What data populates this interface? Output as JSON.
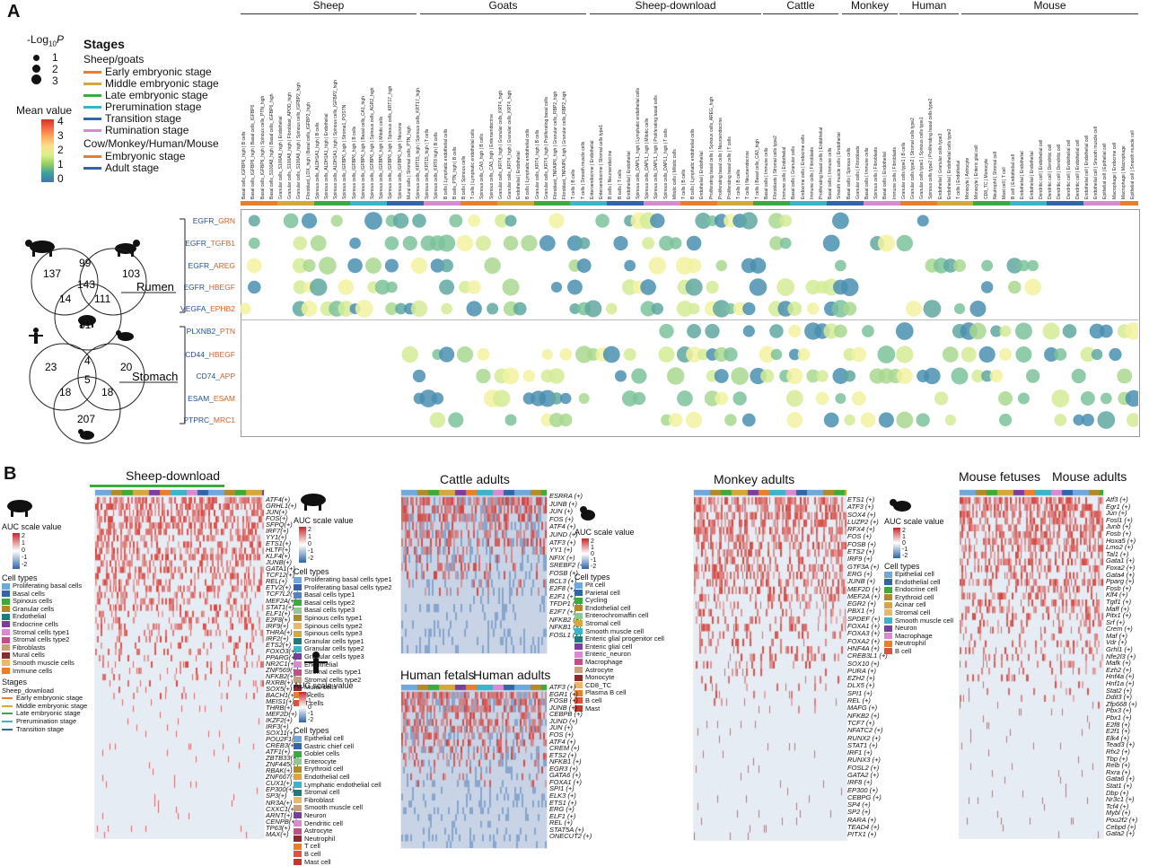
{
  "panelA": {
    "letter": "A",
    "species_headers": [
      "Sheep",
      "Goats",
      "Sheep-download",
      "Cattle",
      "Monkey",
      "Human",
      "Mouse"
    ],
    "pval_legend": {
      "title_prefix": "-Log",
      "title_sub": "10",
      "title_suffix": "P",
      "levels": [
        "1",
        "2",
        "3"
      ]
    },
    "mean_legend": {
      "title": "Mean value",
      "ticks": [
        "4",
        "3",
        "2",
        "1",
        "0"
      ]
    },
    "stages": {
      "title": "Stages",
      "group1": "Sheep/goats",
      "items1": [
        {
          "label": "Early embryonic stage",
          "color": "#e97f2a"
        },
        {
          "label": "Middle embryonic stage",
          "color": "#d6a73a"
        },
        {
          "label": "Late embryonic stage",
          "color": "#3cab3c"
        },
        {
          "label": "Prerumination stage",
          "color": "#39b4c8"
        },
        {
          "label": "Transition stage",
          "color": "#2e66a8"
        },
        {
          "label": "Rumination stage",
          "color": "#d98ad1"
        }
      ],
      "group2": "Cow/Monkey/Human/Mouse",
      "items2": [
        {
          "label": "Embryonic stage",
          "color": "#e97f2a"
        },
        {
          "label": "Adult stage",
          "color": "#2e66a8"
        }
      ]
    },
    "venn_rumen": {
      "label": "Rumen",
      "values": [
        "137",
        "99",
        "103",
        "143",
        "14",
        "111",
        "81"
      ]
    },
    "venn_stomach": {
      "label": "Stomach",
      "values": [
        "23",
        "4",
        "20",
        "5",
        "18",
        "18",
        "207"
      ]
    },
    "rumen_rows": [
      {
        "r": "EGFR",
        "l": "GRN"
      },
      {
        "r": "EGFR",
        "l": "TGFB1"
      },
      {
        "r": "EGFR",
        "l": "AREG"
      },
      {
        "r": "EGFR",
        "l": "HBEGF"
      },
      {
        "r": "VEGFA",
        "l": "EPHB2"
      }
    ],
    "stomach_rows": [
      {
        "r": "PLXNB2",
        "l": "PTN"
      },
      {
        "r": "CD44",
        "l": "HBEGF"
      },
      {
        "r": "CD74",
        "l": "APP"
      },
      {
        "r": "ESAM",
        "l": "ESAM"
      },
      {
        "r": "PTPRC",
        "l": "MRC1"
      }
    ],
    "column_labels": [
      "Basal cells_IGFBP6_high | B cells",
      "Basal cells_IGFBP6_high | Basal cells_IGFBP6",
      "Basal cells_IGFBP6_high | Spinous cells_PTN_high",
      "Basal cells_S100A8_high | Basal cells_IGFBP6_high",
      "Granular cells_S100A8_high | Endothelial",
      "Granular cells_S100A8_high | Fibroblast_APOD_high",
      "Granular cells_S100A8_high | Spinous cells_IGFBP2_high",
      "Fibroblast_LOX_high | Basal cells_IGFBP2_high",
      "Spinous cells_ALDH1A1_high | B cells",
      "Spinous cells_ALDH1A1_high | Endothelial",
      "Spinous cells_ALDH1A1_high | Spinous cells_IGFBP2_high",
      "Spinous cells_IGFBP6_high | Stroma1_POSTN",
      "Spinous cells_IGFBP6_high | B cells",
      "Spinous cells_IGFBP6_high | Basal cells_CA1_high",
      "Spinous cells_IGFBP6_high | Spinous cells_AGR2_high",
      "Spinous cells_IGFBP6_high | Mitotic cells",
      "Spinous cells_IGFBP6_high | Spinous cells_KRT17_high",
      "Spinous cells_IGFBP6_high | Neurons",
      "Mural cells | Stromal cells_PTN_high",
      "Spinous cells_KRT15_high | Spinous cells_KRT17_high",
      "Spinous cells_KRT15_high | T cells",
      "Spinous cells_KRT8 high | B cells",
      "B cells | Lymphatic endothelial cells",
      "B cells_PTN_high | B cells",
      "B cells | Spinous cells",
      "T cells | Lymphatic endothelial cells",
      "Spinous cells_CA3_high | B cells",
      "Spinous cells_CA3_high | Enteroendocrine",
      "Granular cells_KRT4_high | Granular cells_KRT4_high",
      "Granular cells_KRT4_high | Granular cells_KRT4_high",
      "Endothelial | Endothelial",
      "B cells | Lymphatic endothelial cells",
      "Granular cells_KRT4_high | B cells",
      "Granular cells_KRT4_high | Proliferating basal cells",
      "Fibroblast_TNFAIP6_high | Granular cells_RBP2_high",
      "Fibroblast_TNFAIP6_high | Granular cells_RBP2_high",
      "T cells | B cells",
      "T cells | Smooth muscle cells",
      "Enteroendocrine | Endothelial",
      "Enteroendocrine | Stromal cells type1",
      "B cells | Neuroendocrine",
      "B cells | T cells",
      "Endothelial | Endothelial",
      "Spinous cells_DAPL1_high | Lymphatic endothelial cells",
      "Spinous cells_DAPL1_high | Mitotic cells",
      "Spinous cells_DAPL1_high | Proliferating basal cells",
      "Spinous cells_DAPL1_high | T cells",
      "Mitotic cells | Mitotic cells",
      "T cells | B cells",
      "B cells | Lymphatic endothelial cells",
      "Endothelial | Endothelial",
      "Proliferating basal cells | Spinous cells_AREG_high",
      "Proliferating basal cells | Neuroendocrine",
      "Proliferating basal cells | T cells",
      "T cells | B cells",
      "T cells | Neuroendocrine",
      "T cells | Basal cells_CA3_high",
      "Basal cells | Immune cells",
      "Fibroblasts | Stromal cells type2",
      "Immune cells | Endothelial",
      "Basal cells | Granular cells",
      "Endocrine cells | Endocrine cells",
      "Immune cells | Fibroblasts",
      "Proliferating basal cells | Endothelial",
      "Basal cells | Immune cells",
      "Smooth muscle cells | Endothelial",
      "Basal cells | Spinous cells",
      "Granular cells | Fibroblasts",
      "Basal cells | Immune cells",
      "Spinous cells | Fibroblasts",
      "Basal cells | Endothelial",
      "Immune cells | Fibroblasts",
      "Granular cells type1 | B cells",
      "Granular cells type2 | Stromal cells type2",
      "Granular cells type1 | Spinous cells type1",
      "Spinous cells type2 | Proliferating basal cells type2",
      "Endothelial | Granular cells type3",
      "Endothelial | Endothelial cells type2",
      "T cells | Endothelial",
      "Monocyte | Astrocyte",
      "Monocyte | Enteric glial cell",
      "CD8_TC | Monocyte",
      "Neutrophil | Stromal cell",
      "Mast cell | T cell",
      "B cell | Endothelial cell",
      "Endothelial | Endothelial",
      "Endothelial | Endothelial",
      "Dendritic cell | Endothelial cell",
      "Dendritic cell | Dendritic cell",
      "Dendritic cell | Dendritic cell",
      "Dendritic cell | Endothelial cell",
      "Dendritic cell | Endothelial cell",
      "Endothelial cell | Endothelial cell",
      "Endothelial cell | Smooth muscle cell",
      "Epithelial cell | Epithelial cell",
      "Macrophage | Endocrine cell",
      "Macrophage | Macrophage",
      "Epithelial cell | Smooth muscle cell"
    ]
  },
  "panelB": {
    "letter": "B",
    "heatmaps": [
      {
        "title": "Sheep-download",
        "tfs": [
          "ATF4(+)",
          "GRHL1(+)",
          "JUN(+)",
          "FOS(+)",
          "SFPQ(+)",
          "IRF7(+)",
          "YY1(+)",
          "ETS1(+)",
          "HLTF(+)",
          "KLF4(+)",
          "JUNB(+)",
          "GATA1(+)",
          "TCF12(+)",
          "REL(+)",
          "ETV2(+)",
          "TCF7L2(+)",
          "MEF2A(+)",
          "STAT1(+)",
          "ELF1(+)",
          "E2F8(+)",
          "IRF9(+)",
          "THRA(+)",
          "IRF2(+)",
          "ETS2(+)",
          "FOXO3(+)",
          "PPARG(+)",
          "NR2C1(+)",
          "ZNF569(+)",
          "NFKB2(+)",
          "RXRB(+)",
          "SOX5(+)",
          "BACH1(+)",
          "MEIS1(+)",
          "THRB(+)",
          "MEF2D(+)",
          "IKZF2(+)",
          "IRF3(+)",
          "SOX11(+)",
          "POU2F1(+)",
          "CREB3(+)",
          "ATF1(+)",
          "ZBTB33(+)",
          "ZNF445(+)",
          "RBAK(+)",
          "ZNF667(+)",
          "CUX1(+)",
          "EP300(+)",
          "SP3(+)",
          "NR3A(+)",
          "CXXC1(+)",
          "ARNT(+)",
          "CENPB(+)",
          "TP63(+)",
          "MAX(+)"
        ]
      },
      {
        "title": "Cattle adults",
        "tfs": [
          "ESRRA (+)",
          "JUNB (+)",
          "JUN (+)",
          "FOS (+)",
          "ATF4 (+)",
          "JUND (+)",
          "ATF3 (+)",
          "YY1 (+)",
          "NFIX (+)",
          "SREBF2 (+)",
          "FOSB (+)",
          "BCL3 (+)",
          "E2F8 (+)",
          "E2F1 (+)",
          "TFDP1 (+)",
          "E2F7 (+)",
          "NFKB2 (+)",
          "NFKB1 (+)",
          "FOSL1 (+)"
        ]
      },
      {
        "title": "Human fetals",
        "title2": "Human adults",
        "tfs": [
          "ATF3 (+)",
          "EGR1 (+)",
          "FOSB (+)",
          "JUNB (+)",
          "CEBPB (+)",
          "JUND (+)",
          "JUN (+)",
          "FOS (+)",
          "ATF4 (+)",
          "CREM (+)",
          "ETS2 (+)",
          "NFKB1 (+)",
          "EGR3 (+)",
          "GATA6 (+)",
          "FOXA1 (+)",
          "SPI1 (+)",
          "ELK3 (+)",
          "ETS1 (+)",
          "ERG (+)",
          "ELF1 (+)",
          "REL (+)",
          "STAT5A (+)",
          "ONECUT2 (+)"
        ]
      },
      {
        "title": "Monkey adults",
        "tfs": [
          "ETS1 (+)",
          "ATF3 (+)",
          "SOX4 (+)",
          "LUZP2 (+)",
          "RFX4 (+)",
          "FOS (+)",
          "FOSB (+)",
          "ETS2 (+)",
          "IRF9 (+)",
          "GTF3A (+)",
          "ERG (+)",
          "JUNB (+)",
          "MEF2D (+)",
          "MEF2A (+)",
          "EGR2 (+)",
          "PBX1 (+)",
          "SPDEF (+)",
          "FOXA1 (+)",
          "FOXA3 (+)",
          "FOXA2 (+)",
          "HNF4A (+)",
          "CREB3L1 (+)",
          "SOX10 (+)",
          "PURA (+)",
          "EZH2 (+)",
          "DLX5 (+)",
          "SPI1 (+)",
          "REL (+)",
          "MAFG (+)",
          "NFKB2 (+)",
          "TCF7 (+)",
          "NFATC2 (+)",
          "RUNX2 (+)",
          "STAT1 (+)",
          "IRF1 (+)",
          "RUNX3 (+)",
          "FOSL2 (+)",
          "GATA2 (+)",
          "IRF8 (+)",
          "EP300 (+)",
          "CEBPG (+)",
          "SP4 (+)",
          "SP2 (+)",
          "RARA (+)",
          "TEAD4 (+)",
          "PITX1 (+)"
        ]
      },
      {
        "title": "Mouse fetuses",
        "title2": "Mouse adults",
        "tfs": [
          "Atf3 (+)",
          "Egr1 (+)",
          "Jun (+)",
          "Fosl1 (+)",
          "Junb (+)",
          "Fosb (+)",
          "Hoxa5 (+)",
          "Lmo2 (+)",
          "Tal1 (+)",
          "Gata1 (+)",
          "Foxa2 (+)",
          "Gata4 (+)",
          "Pparg (+)",
          "Fosb (+)",
          "Klf4 (+)",
          "Tgif1 (+)",
          "Maff (+)",
          "Pitx1 (+)",
          "Srf (+)",
          "Crem (+)",
          "Maf (+)",
          "Vdr (+)",
          "Grhl1 (+)",
          "Nfe2l3 (+)",
          "Mafk (+)",
          "Ezh2 (+)",
          "Hnf4a (+)",
          "Hnf1a (+)",
          "Stat2 (+)",
          "Ddit3 (+)",
          "Zfp668 (+)",
          "Pbx3 (+)",
          "Pbx1 (+)",
          "E2f8 (+)",
          "E2f1 (+)",
          "Elk4 (+)",
          "Tead3 (+)",
          "Rfx2 (+)",
          "Tbp (+)",
          "Relb (+)",
          "Rxra (+)",
          "Gata6 (+)",
          "Stat1 (+)",
          "Dbp (+)",
          "Nr3c1 (+)",
          "Tcf4 (+)",
          "Mybl (+)",
          "Pou2f2 (+)",
          "Cebpd (+)",
          "Gata2 (+)"
        ]
      }
    ],
    "auc_label": "AUC scale value",
    "auc_ticks": [
      "2",
      "1",
      "0",
      "-1",
      "-2"
    ],
    "sheep_celltypes": {
      "title": "Cell types",
      "items": [
        {
          "label": "Proliferating basal cells",
          "color": "#6fa8dc"
        },
        {
          "label": "Basal cells",
          "color": "#2e66a8"
        },
        {
          "label": "Spinous cells",
          "color": "#3cab3c"
        },
        {
          "label": "Granular cells",
          "color": "#b28a2a"
        },
        {
          "label": "Endothelial",
          "color": "#1f7b7b"
        },
        {
          "label": "Endocrine cells",
          "color": "#7a3e9c"
        },
        {
          "label": "Stromal cells type1",
          "color": "#d98ad1"
        },
        {
          "label": "Stromal cells type2",
          "color": "#c24f8a"
        },
        {
          "label": "Fibroblasts",
          "color": "#c9a07a"
        },
        {
          "label": "Mural cells",
          "color": "#8a2a2a"
        },
        {
          "label": "Smooth muscle cells",
          "color": "#e9b86a"
        },
        {
          "label": "Immune cells",
          "color": "#e97f2a"
        }
      ]
    },
    "sheep_stages": {
      "title": "Stages",
      "sub": "Sheep_download",
      "items": [
        {
          "label": "Early embryonic stage",
          "color": "#e97f2a"
        },
        {
          "label": "Middle embryonic stage",
          "color": "#d6a73a"
        },
        {
          "label": "Late embryonic stage",
          "color": "#3cab3c"
        },
        {
          "label": "Prerumination stage",
          "color": "#39b4c8"
        },
        {
          "label": "Transition stage",
          "color": "#2e66a8"
        }
      ]
    },
    "cattle_celltypes": {
      "title": "Cell types",
      "items": [
        {
          "label": "Proliferating basal cells type1",
          "color": "#6fa8dc"
        },
        {
          "label": "Proliferating basal cells type2",
          "color": "#2e66a8"
        },
        {
          "label": "Basal cells type1",
          "color": "#4f86c6"
        },
        {
          "label": "Basal cells type2",
          "color": "#3cab3c"
        },
        {
          "label": "Basal cells type3",
          "color": "#8fc98f"
        },
        {
          "label": "Spinous cells type1",
          "color": "#b28a2a"
        },
        {
          "label": "Spinous cells type2",
          "color": "#e9b86a"
        },
        {
          "label": "Spinous cells type3",
          "color": "#d6a73a"
        },
        {
          "label": "Granular cells type1",
          "color": "#1f7b7b"
        },
        {
          "label": "Granular cells type2",
          "color": "#39b4c8"
        },
        {
          "label": "Granular cells type3",
          "color": "#7a3e9c"
        },
        {
          "label": "Endothelial",
          "color": "#d98ad1"
        },
        {
          "label": "Stromal cells type1",
          "color": "#c24f8a"
        },
        {
          "label": "Stromal cells type2",
          "color": "#c9a07a"
        },
        {
          "label": "Mural cells",
          "color": "#8a2a2a"
        },
        {
          "label": "B cells",
          "color": "#e97f2a"
        },
        {
          "label": "T cells",
          "color": "#e0503a"
        }
      ]
    },
    "stomach_celltypes": {
      "title": "Cell types",
      "items": [
        {
          "label": "Pit cell",
          "color": "#6fa8dc"
        },
        {
          "label": "Parietal cell",
          "color": "#2e66a8"
        },
        {
          "label": "Cycling",
          "color": "#3cab3c"
        },
        {
          "label": "Endothelial cell",
          "color": "#b28a2a"
        },
        {
          "label": "Enterochromaffin cell",
          "color": "#8fc98f"
        },
        {
          "label": "Stromal cell",
          "color": "#d6a73a"
        },
        {
          "label": "Smooth muscle cell",
          "color": "#39b4c8"
        },
        {
          "label": "Enteric glial progenitor cell",
          "color": "#1f7b7b"
        },
        {
          "label": "Enteric glial cell",
          "color": "#7a3e9c"
        },
        {
          "label": "Enteric_neuron",
          "color": "#d98ad1"
        },
        {
          "label": "Macrophage",
          "color": "#c24f8a"
        },
        {
          "label": "Astrocyte",
          "color": "#c9a07a"
        },
        {
          "label": "Monocyte",
          "color": "#8a2a2a"
        },
        {
          "label": "CD8_TC",
          "color": "#e9b86a"
        },
        {
          "label": "Plasma B cell",
          "color": "#e97f2a"
        },
        {
          "label": "B cell",
          "color": "#e0503a"
        },
        {
          "label": "Mast",
          "color": "#c0392b"
        }
      ]
    },
    "human_celltypes": {
      "title": "Cell types",
      "items": [
        {
          "label": "Epithelial cell",
          "color": "#6fa8dc"
        },
        {
          "label": "Gastric chief cell",
          "color": "#2e66a8"
        },
        {
          "label": "Goblet cells",
          "color": "#3cab3c"
        },
        {
          "label": "Enterocyte",
          "color": "#8fc98f"
        },
        {
          "label": "Erythroid cell",
          "color": "#b28a2a"
        },
        {
          "label": "Endothelial cell",
          "color": "#d6a73a"
        },
        {
          "label": "Lymphatic endothelial cell",
          "color": "#39b4c8"
        },
        {
          "label": "Stromal cell",
          "color": "#1f7b7b"
        },
        {
          "label": "Fibroblast",
          "color": "#e9b86a"
        },
        {
          "label": "Smooth muscle cell",
          "color": "#c9a07a"
        },
        {
          "label": "Neuron",
          "color": "#7a3e9c"
        },
        {
          "label": "Dendritic cell",
          "color": "#d98ad1"
        },
        {
          "label": "Astrocyte",
          "color": "#c24f8a"
        },
        {
          "label": "Neutrophil",
          "color": "#8a2a2a"
        },
        {
          "label": "T cell",
          "color": "#e97f2a"
        },
        {
          "label": "B cell",
          "color": "#e0503a"
        },
        {
          "label": "Mast cell",
          "color": "#c0392b"
        }
      ]
    },
    "mouse_celltypes": {
      "title": "Cell types",
      "items": [
        {
          "label": "Epithelial cell",
          "color": "#6fa8dc"
        },
        {
          "label": "Endothelial cell",
          "color": "#2e66a8"
        },
        {
          "label": "Endocrine cell",
          "color": "#3cab3c"
        },
        {
          "label": "Erythroid cell",
          "color": "#b28a2a"
        },
        {
          "label": "Acinar cell",
          "color": "#d6a73a"
        },
        {
          "label": "Stromal cell",
          "color": "#e9b86a"
        },
        {
          "label": "Smooth muscle cell",
          "color": "#39b4c8"
        },
        {
          "label": "Neuron",
          "color": "#7a3e9c"
        },
        {
          "label": "Macrophage",
          "color": "#d98ad1"
        },
        {
          "label": "Neutrophil",
          "color": "#e97f2a"
        },
        {
          "label": "B cell",
          "color": "#e0503a"
        }
      ]
    }
  }
}
